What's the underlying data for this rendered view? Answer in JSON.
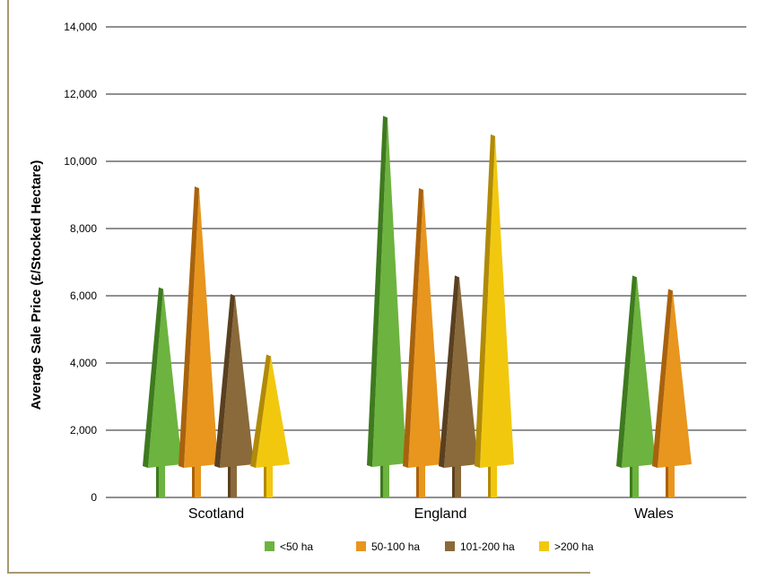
{
  "chart_data": {
    "type": "bar",
    "title": "",
    "xlabel": "",
    "ylabel": "Average Sale Price (£/Stocked Hectare)",
    "ylim": [
      0,
      14000
    ],
    "yticks": [
      0,
      2000,
      4000,
      6000,
      8000,
      10000,
      12000,
      14000
    ],
    "ytick_labels": [
      "0",
      "2,000",
      "4,000",
      "6,000",
      "8,000",
      "10,000",
      "12,000",
      "14,000"
    ],
    "grid": true,
    "legend_position": "bottom",
    "categories": [
      "Scotland",
      "England",
      "Wales"
    ],
    "series": [
      {
        "name": "<50 ha",
        "color": "#6db33f",
        "shade": "#3e7a1f",
        "values": [
          6200,
          11300,
          6550
        ]
      },
      {
        "name": "50-100 ha",
        "color": "#e8961e",
        "shade": "#a9620c",
        "values": [
          9200,
          9150,
          6150
        ]
      },
      {
        "name": "101-200 ha",
        "color": "#8a6a3a",
        "shade": "#5a4020",
        "values": [
          6000,
          6550,
          null
        ]
      },
      {
        "name": ">200 ha",
        "color": "#f2c80f",
        "shade": "#b08a08",
        "values": [
          4200,
          10750,
          null
        ]
      }
    ]
  }
}
